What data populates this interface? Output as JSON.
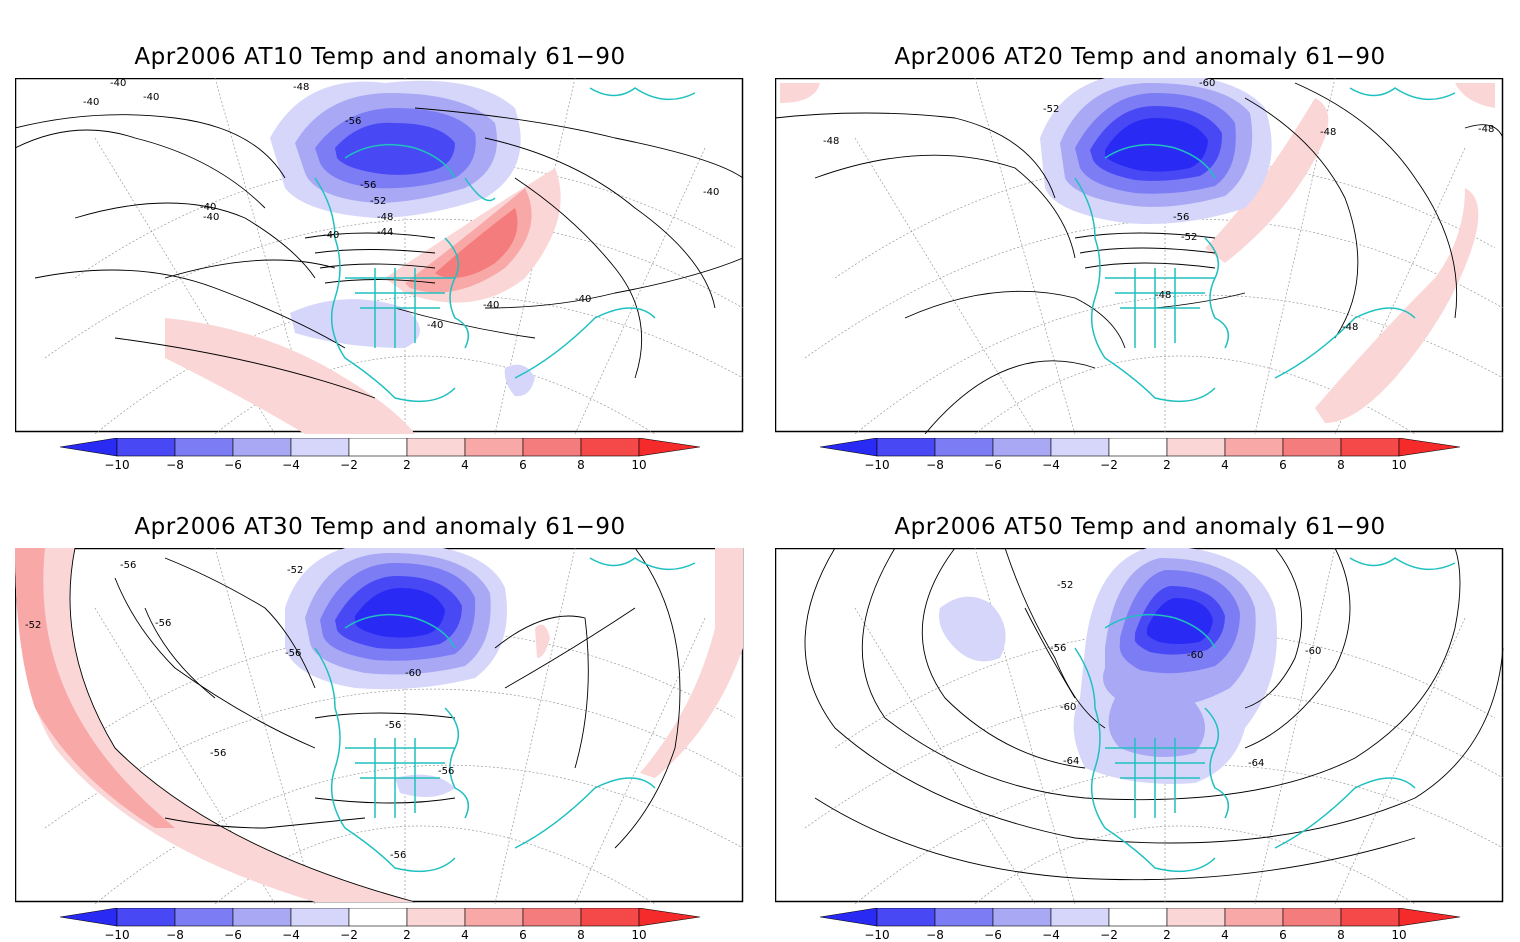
{
  "colors": {
    "neg10": "#2a2af5",
    "neg8": "#4848f5",
    "neg6": "#7c7cf5",
    "neg4": "#a8a8f5",
    "neg2": "#d6d6fb",
    "pos2": "#fbd6d6",
    "pos4": "#f9a8a8",
    "pos6": "#f57c7c",
    "pos8": "#f54848",
    "pos10": "#f52a2a",
    "coast": "#20c0c0",
    "contour": "#000000",
    "grid": "#9a9a9a"
  },
  "colorbar": {
    "ticks": [
      "−10",
      "−8",
      "−6",
      "−4",
      "−2",
      "2",
      "4",
      "6",
      "8",
      "10"
    ]
  },
  "panels": [
    {
      "title": "Apr2006 AT10 Temp and anomaly 61−90",
      "contour_labels": [
        "-40",
        "-40",
        "-40",
        "-48",
        "-56",
        "-56",
        "-52",
        "-48",
        "-44",
        "-40",
        "-40",
        "-40",
        "-40",
        "-40",
        "-40",
        "-40"
      ]
    },
    {
      "title": "Apr2006 AT20 Temp and anomaly 61−90",
      "contour_labels": [
        "-48",
        "-52",
        "-60",
        "-48",
        "-48",
        "-56",
        "-52",
        "-48",
        "-48"
      ]
    },
    {
      "title": "Apr2006 AT30 Temp and anomaly 61−90",
      "contour_labels": [
        "-56",
        "-52",
        "-56",
        "-56",
        "-60",
        "-56",
        "-56",
        "-56",
        "-56",
        "-52"
      ]
    },
    {
      "title": "Apr2006 AT50 Temp and anomaly 61−90",
      "contour_labels": [
        "-52",
        "-56",
        "-60",
        "-60",
        "-60",
        "-64",
        "-64"
      ]
    }
  ]
}
